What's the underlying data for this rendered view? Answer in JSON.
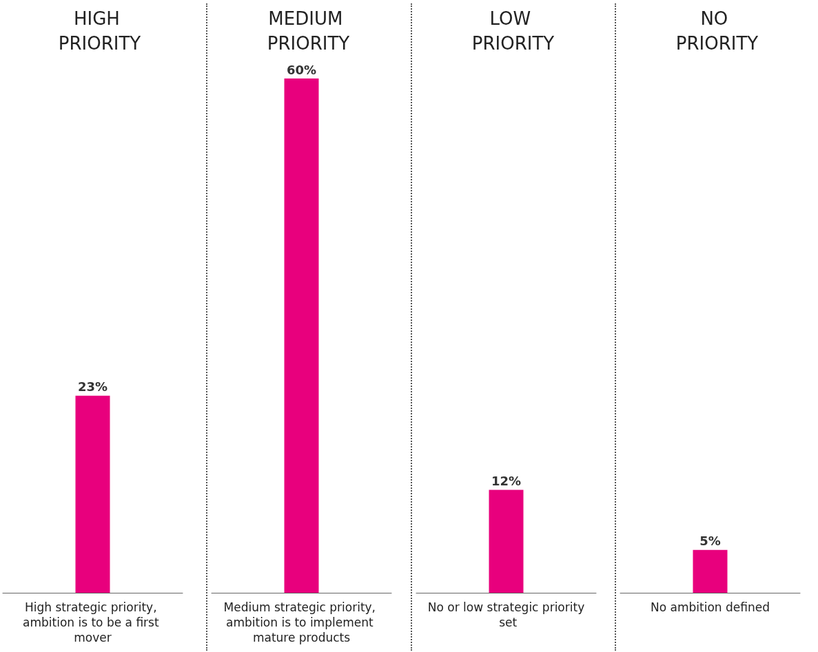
{
  "chart_data": [
    {
      "type": "bar",
      "title": "HIGH PRIORITY",
      "categories": [
        "High strategic priority, ambition is to be a first mover"
      ],
      "values": [
        23
      ],
      "value_labels": [
        "23%"
      ],
      "color": "#e8007d"
    },
    {
      "type": "bar",
      "title": "MEDIUM PRIORITY",
      "categories": [
        "Medium strategic priority, ambition is to implement mature products"
      ],
      "values": [
        60
      ],
      "value_labels": [
        "60%"
      ],
      "color": "#e8007d"
    },
    {
      "type": "bar",
      "title": "LOW PRIORITY",
      "categories": [
        "No or low strategic priority set"
      ],
      "values": [
        12
      ],
      "value_labels": [
        "12%"
      ],
      "color": "#e8007d"
    },
    {
      "type": "bar",
      "title": "NO PRIORITY",
      "categories": [
        "No ambition defined"
      ],
      "values": [
        5
      ],
      "value_labels": [
        "5%"
      ],
      "color": "#e8007d"
    }
  ]
}
